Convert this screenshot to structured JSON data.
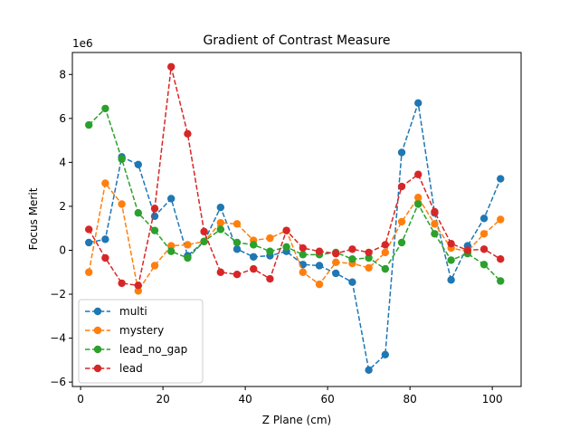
{
  "chart_data": {
    "type": "line",
    "title": "Gradient of Contrast Measure",
    "xlabel": "Z Plane (cm)",
    "ylabel": "Focus Merit",
    "y_offset_label": "1e6",
    "xlim": [
      -2,
      107
    ],
    "ylim": [
      -6.2,
      9.0
    ],
    "x_ticks": [
      0,
      20,
      40,
      60,
      80,
      100
    ],
    "x_tick_labels": [
      "0",
      "20",
      "40",
      "60",
      "80",
      "100"
    ],
    "y_ticks": [
      -6,
      -4,
      -2,
      0,
      2,
      4,
      6,
      8
    ],
    "y_tick_labels": [
      "−6",
      "−4",
      "−2",
      "0",
      "2",
      "4",
      "6",
      "8"
    ],
    "grid": false,
    "legend_position": "lower-left",
    "x": [
      2,
      6,
      10,
      14,
      18,
      22,
      26,
      30,
      34,
      38,
      42,
      46,
      50,
      54,
      58,
      62,
      66,
      70,
      74,
      78,
      82,
      86,
      90,
      94,
      98,
      102
    ],
    "series": [
      {
        "name": "multi",
        "color": "#1f77b4",
        "values": [
          0.35,
          0.5,
          4.25,
          3.9,
          1.55,
          2.35,
          -0.25,
          0.4,
          1.95,
          0.05,
          -0.3,
          -0.25,
          -0.05,
          -0.65,
          -0.7,
          -1.05,
          -1.45,
          -5.45,
          -4.75,
          4.45,
          6.7,
          1.7,
          -1.35,
          0.2,
          1.45,
          3.25
        ]
      },
      {
        "name": "mystery",
        "color": "#ff7f0e",
        "values": [
          -1.0,
          3.05,
          2.1,
          -1.85,
          -0.7,
          0.2,
          0.25,
          0.4,
          1.25,
          1.2,
          0.45,
          0.55,
          0.9,
          -1.0,
          -1.55,
          -0.55,
          -0.6,
          -0.8,
          -0.1,
          1.3,
          2.4,
          1.2,
          0.1,
          -0.05,
          0.75,
          1.4
        ]
      },
      {
        "name": "lead_no_gap",
        "color": "#2ca02c",
        "values": [
          5.7,
          6.45,
          4.15,
          1.7,
          0.9,
          -0.05,
          -0.35,
          0.4,
          0.95,
          0.35,
          0.25,
          -0.05,
          0.15,
          -0.2,
          -0.2,
          -0.1,
          -0.4,
          -0.35,
          -0.85,
          0.35,
          2.1,
          0.75,
          -0.45,
          -0.15,
          -0.65,
          -1.4
        ]
      },
      {
        "name": "lead",
        "color": "#d62728",
        "values": [
          0.95,
          -0.35,
          -1.5,
          -1.6,
          1.9,
          8.35,
          5.3,
          0.85,
          -1.0,
          -1.1,
          -0.85,
          -1.3,
          0.9,
          0.1,
          -0.05,
          -0.15,
          0.05,
          -0.1,
          0.25,
          2.9,
          3.45,
          1.75,
          0.3,
          0.0,
          0.05,
          -0.4
        ]
      }
    ]
  }
}
